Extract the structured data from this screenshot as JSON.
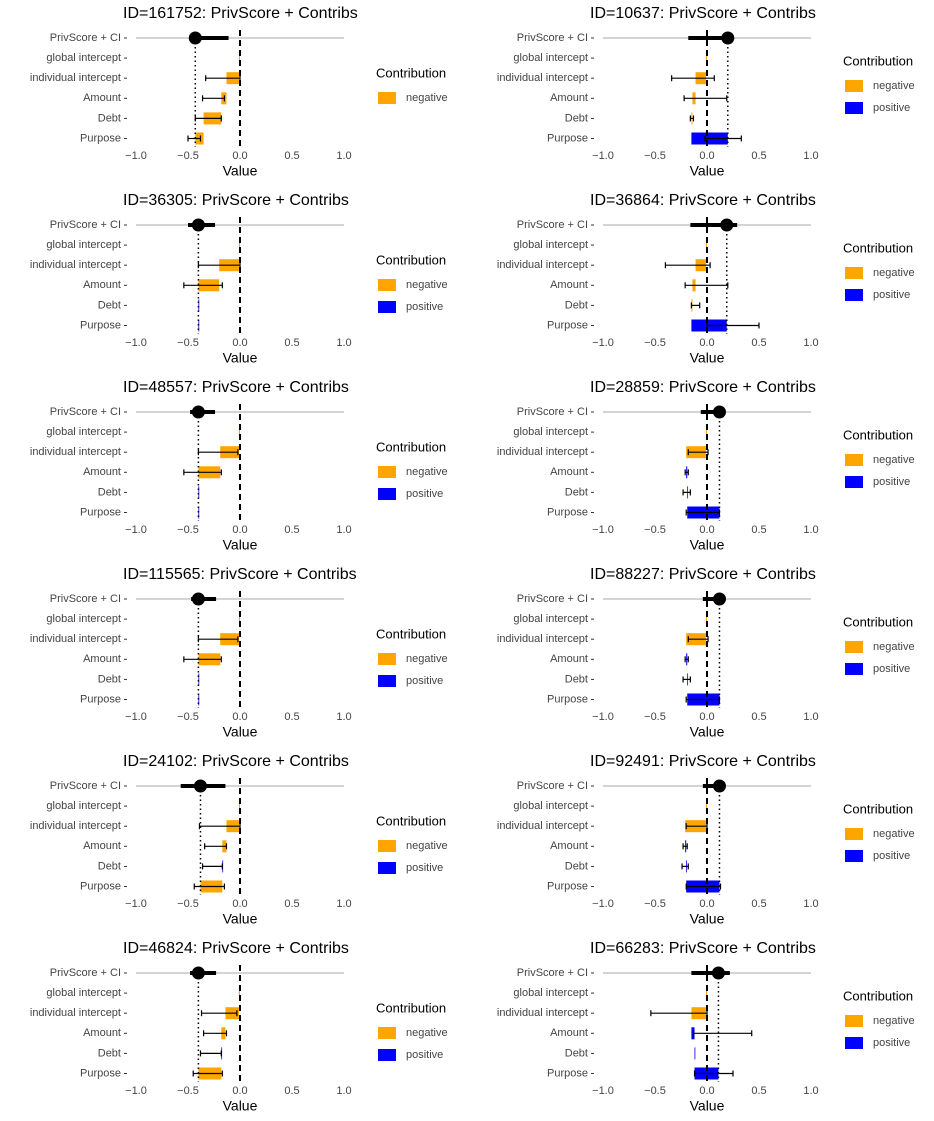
{
  "chart_data": [
    {
      "type": "waterfall",
      "title": "ID=161752: PrivScore + Contribs",
      "score_category": "PrivScore + CI",
      "categories": [
        "global intercept",
        "individual intercept",
        "Amount",
        "Debt",
        "Purpose"
      ],
      "score": -0.43,
      "ci": [
        -0.44,
        -0.11
      ],
      "values": [
        -0.01,
        -0.12,
        -0.05,
        -0.17,
        -0.08
      ],
      "err_low": [
        null,
        -0.33,
        -0.36,
        -0.43,
        -0.5
      ],
      "err_high": [
        null,
        0.0,
        -0.15,
        -0.18,
        -0.38
      ],
      "xlabel": "Value",
      "xlim": [
        -1,
        1
      ],
      "xticks": [
        {
          "value": -1,
          "label": "−1.0"
        },
        {
          "value": -0.5,
          "label": "−0.5"
        },
        {
          "value": 0,
          "label": "0.0"
        },
        {
          "value": 0.5,
          "label": "0.5"
        },
        {
          "value": 1,
          "label": "1.0"
        }
      ],
      "legend_title": "Contribution",
      "legend": [
        {
          "name": "negative",
          "color": "#FFA500"
        }
      ]
    },
    {
      "type": "waterfall",
      "title": "ID=10637: PrivScore + Contribs",
      "score_category": "PrivScore + CI",
      "categories": [
        "global intercept",
        "individual intercept",
        "Amount",
        "Debt",
        "Purpose"
      ],
      "score": 0.2,
      "ci": [
        -0.18,
        0.2
      ],
      "values": [
        -0.01,
        -0.1,
        -0.03,
        -0.01,
        0.35
      ],
      "err_low": [
        null,
        -0.34,
        -0.22,
        -0.16,
        -0.02
      ],
      "err_high": [
        null,
        0.07,
        0.19,
        -0.13,
        0.33
      ],
      "xlabel": "Value",
      "xlim": [
        -1,
        1
      ],
      "xticks": [
        {
          "value": -1,
          "label": "−1.0"
        },
        {
          "value": -0.5,
          "label": "−0.5"
        },
        {
          "value": 0,
          "label": "0.0"
        },
        {
          "value": 0.5,
          "label": "0.5"
        },
        {
          "value": 1,
          "label": "1.0"
        }
      ],
      "legend_title": "Contribution",
      "legend": [
        {
          "name": "negative",
          "color": "#FFA500"
        },
        {
          "name": "positive",
          "color": "#0000FF"
        }
      ]
    },
    {
      "type": "waterfall",
      "title": "ID=36305: PrivScore + Contribs",
      "score_category": "PrivScore + CI",
      "categories": [
        "global intercept",
        "individual intercept",
        "Amount",
        "Debt",
        "Purpose"
      ],
      "score": -0.4,
      "ci": [
        -0.5,
        -0.24
      ],
      "values": [
        -0.01,
        -0.19,
        -0.2,
        0,
        0
      ],
      "err_low": [
        null,
        -0.4,
        -0.54,
        null,
        null
      ],
      "err_high": [
        null,
        0.0,
        -0.17,
        null,
        null
      ],
      "xlabel": "Value",
      "xlim": [
        -1,
        1
      ],
      "xticks": [
        {
          "value": -1,
          "label": "−1.0"
        },
        {
          "value": -0.5,
          "label": "−0.5"
        },
        {
          "value": 0,
          "label": "0.0"
        },
        {
          "value": 0.5,
          "label": "0.5"
        },
        {
          "value": 1,
          "label": "1.0"
        }
      ],
      "legend_title": "Contribution",
      "legend": [
        {
          "name": "negative",
          "color": "#FFA500"
        },
        {
          "name": "positive",
          "color": "#0000FF"
        }
      ]
    },
    {
      "type": "waterfall",
      "title": "ID=36864: PrivScore + Contribs",
      "score_category": "PrivScore + CI",
      "categories": [
        "global intercept",
        "individual intercept",
        "Amount",
        "Debt",
        "Purpose"
      ],
      "score": 0.19,
      "ci": [
        -0.16,
        0.29
      ],
      "values": [
        -0.01,
        -0.1,
        -0.03,
        -0.01,
        0.34
      ],
      "err_low": [
        null,
        -0.4,
        -0.21,
        -0.15,
        0.0
      ],
      "err_high": [
        null,
        0.03,
        0.2,
        -0.07,
        0.5
      ],
      "xlabel": "Value",
      "xlim": [
        -1,
        1
      ],
      "xticks": [
        {
          "value": -1,
          "label": "−1.0"
        },
        {
          "value": -0.5,
          "label": "−0.5"
        },
        {
          "value": 0,
          "label": "0.0"
        },
        {
          "value": 0.5,
          "label": "0.5"
        },
        {
          "value": 1,
          "label": "1.0"
        }
      ],
      "legend_title": "Contribution",
      "legend": [
        {
          "name": "negative",
          "color": "#FFA500"
        },
        {
          "name": "positive",
          "color": "#0000FF"
        }
      ]
    },
    {
      "type": "waterfall",
      "title": "ID=48557: PrivScore + Contribs",
      "score_category": "PrivScore + CI",
      "categories": [
        "global intercept",
        "individual intercept",
        "Amount",
        "Debt",
        "Purpose"
      ],
      "score": -0.4,
      "ci": [
        -0.48,
        -0.24
      ],
      "values": [
        -0.01,
        -0.18,
        -0.21,
        0,
        0
      ],
      "err_low": [
        null,
        -0.4,
        -0.54,
        null,
        null
      ],
      "err_high": [
        null,
        -0.02,
        -0.18,
        null,
        null
      ],
      "xlabel": "Value",
      "xlim": [
        -1,
        1
      ],
      "xticks": [
        {
          "value": -1,
          "label": "−1.0"
        },
        {
          "value": -0.5,
          "label": "−0.5"
        },
        {
          "value": 0,
          "label": "0.0"
        },
        {
          "value": 0.5,
          "label": "0.5"
        },
        {
          "value": 1,
          "label": "1.0"
        }
      ],
      "legend_title": "Contribution",
      "legend": [
        {
          "name": "negative",
          "color": "#FFA500"
        },
        {
          "name": "positive",
          "color": "#0000FF"
        }
      ]
    },
    {
      "type": "waterfall",
      "title": "ID=28859: PrivScore + Contribs",
      "score_category": "PrivScore + CI",
      "categories": [
        "global intercept",
        "individual intercept",
        "Amount",
        "Debt",
        "Purpose"
      ],
      "score": 0.12,
      "ci": [
        -0.06,
        0.12
      ],
      "values": [
        -0.01,
        -0.19,
        0.01,
        0,
        0.31
      ],
      "err_low": [
        null,
        -0.18,
        -0.21,
        -0.23,
        -0.2
      ],
      "err_high": [
        null,
        0.01,
        -0.18,
        -0.16,
        0.12
      ],
      "xlabel": "Value",
      "xlim": [
        -1,
        1
      ],
      "xticks": [
        {
          "value": -1,
          "label": "−1.0"
        },
        {
          "value": -0.5,
          "label": "−0.5"
        },
        {
          "value": 0,
          "label": "0.0"
        },
        {
          "value": 0.5,
          "label": "0.5"
        },
        {
          "value": 1,
          "label": "1.0"
        }
      ],
      "legend_title": "Contribution",
      "legend": [
        {
          "name": "negative",
          "color": "#FFA500"
        },
        {
          "name": "positive",
          "color": "#0000FF"
        }
      ]
    },
    {
      "type": "waterfall",
      "title": "ID=115565: PrivScore + Contribs",
      "score_category": "PrivScore + CI",
      "categories": [
        "global intercept",
        "individual intercept",
        "Amount",
        "Debt",
        "Purpose"
      ],
      "score": -0.4,
      "ci": [
        -0.47,
        -0.23
      ],
      "values": [
        -0.01,
        -0.18,
        -0.21,
        0,
        0
      ],
      "err_low": [
        null,
        -0.4,
        -0.54,
        null,
        null
      ],
      "err_high": [
        null,
        -0.02,
        -0.18,
        null,
        null
      ],
      "xlabel": "Value",
      "xlim": [
        -1,
        1
      ],
      "xticks": [
        {
          "value": -1,
          "label": "−1.0"
        },
        {
          "value": -0.5,
          "label": "−0.5"
        },
        {
          "value": 0,
          "label": "0.0"
        },
        {
          "value": 0.5,
          "label": "0.5"
        },
        {
          "value": 1,
          "label": "1.0"
        }
      ],
      "legend_title": "Contribution",
      "legend": [
        {
          "name": "negative",
          "color": "#FFA500"
        },
        {
          "name": "positive",
          "color": "#0000FF"
        }
      ]
    },
    {
      "type": "waterfall",
      "title": "ID=88227: PrivScore + Contribs",
      "score_category": "PrivScore + CI",
      "categories": [
        "global intercept",
        "individual intercept",
        "Amount",
        "Debt",
        "Purpose"
      ],
      "score": 0.12,
      "ci": [
        -0.04,
        0.12
      ],
      "values": [
        -0.01,
        -0.19,
        0.01,
        0,
        0.31
      ],
      "err_low": [
        null,
        -0.18,
        -0.21,
        -0.23,
        -0.2
      ],
      "err_high": [
        null,
        0.01,
        -0.18,
        -0.16,
        0.12
      ],
      "xlabel": "Value",
      "xlim": [
        -1,
        1
      ],
      "xticks": [
        {
          "value": -1,
          "label": "−1.0"
        },
        {
          "value": -0.5,
          "label": "−0.5"
        },
        {
          "value": 0,
          "label": "0.0"
        },
        {
          "value": 0.5,
          "label": "0.5"
        },
        {
          "value": 1,
          "label": "1.0"
        }
      ],
      "legend_title": "Contribution",
      "legend": [
        {
          "name": "negative",
          "color": "#FFA500"
        },
        {
          "name": "positive",
          "color": "#0000FF"
        }
      ]
    },
    {
      "type": "waterfall",
      "title": "ID=24102: PrivScore + Contribs",
      "score_category": "PrivScore + CI",
      "categories": [
        "global intercept",
        "individual intercept",
        "Amount",
        "Debt",
        "Purpose"
      ],
      "score": -0.38,
      "ci": [
        -0.57,
        -0.14
      ],
      "values": [
        -0.01,
        -0.12,
        -0.04,
        0,
        -0.21
      ],
      "err_low": [
        null,
        -0.39,
        -0.34,
        -0.36,
        -0.44
      ],
      "err_high": [
        null,
        0.0,
        -0.13,
        -0.17,
        -0.15
      ],
      "xlabel": "Value",
      "xlim": [
        -1,
        1
      ],
      "xticks": [
        {
          "value": -1,
          "label": "−1.0"
        },
        {
          "value": -0.5,
          "label": "−0.5"
        },
        {
          "value": 0,
          "label": "0.0"
        },
        {
          "value": 0.5,
          "label": "0.5"
        },
        {
          "value": 1,
          "label": "1.0"
        }
      ],
      "legend_title": "Contribution",
      "legend": [
        {
          "name": "negative",
          "color": "#FFA500"
        },
        {
          "name": "positive",
          "color": "#0000FF"
        }
      ]
    },
    {
      "type": "waterfall",
      "title": "ID=92491: PrivScore + Contribs",
      "score_category": "PrivScore + CI",
      "categories": [
        "global intercept",
        "individual intercept",
        "Amount",
        "Debt",
        "Purpose"
      ],
      "score": 0.12,
      "ci": [
        -0.04,
        0.12
      ],
      "values": [
        -0.01,
        -0.2,
        0.01,
        0,
        0.32
      ],
      "err_low": [
        null,
        -0.2,
        -0.23,
        -0.24,
        -0.2
      ],
      "err_high": [
        null,
        0.0,
        -0.19,
        -0.18,
        0.13
      ],
      "xlabel": "Value",
      "xlim": [
        -1,
        1
      ],
      "xticks": [
        {
          "value": -1,
          "label": "−1.0"
        },
        {
          "value": -0.5,
          "label": "−0.5"
        },
        {
          "value": 0,
          "label": "0.0"
        },
        {
          "value": 0.5,
          "label": "0.5"
        },
        {
          "value": 1,
          "label": "1.0"
        }
      ],
      "legend_title": "Contribution",
      "legend": [
        {
          "name": "negative",
          "color": "#FFA500"
        },
        {
          "name": "positive",
          "color": "#0000FF"
        }
      ]
    },
    {
      "type": "waterfall",
      "title": "ID=46824: PrivScore + Contribs",
      "score_category": "PrivScore + CI",
      "categories": [
        "global intercept",
        "individual intercept",
        "Amount",
        "Debt",
        "Purpose"
      ],
      "score": -0.4,
      "ci": [
        -0.48,
        -0.23
      ],
      "values": [
        -0.01,
        -0.13,
        -0.04,
        0,
        -0.22
      ],
      "err_low": [
        null,
        -0.37,
        -0.35,
        -0.38,
        -0.45
      ],
      "err_high": [
        null,
        -0.03,
        -0.13,
        -0.18,
        -0.17
      ],
      "xlabel": "Value",
      "xlim": [
        -1,
        1
      ],
      "xticks": [
        {
          "value": -1,
          "label": "−1.0"
        },
        {
          "value": -0.5,
          "label": "−0.5"
        },
        {
          "value": 0,
          "label": "0.0"
        },
        {
          "value": 0.5,
          "label": "0.5"
        },
        {
          "value": 1,
          "label": "1.0"
        }
      ],
      "legend_title": "Contribution",
      "legend": [
        {
          "name": "negative",
          "color": "#FFA500"
        },
        {
          "name": "positive",
          "color": "#0000FF"
        }
      ]
    },
    {
      "type": "waterfall",
      "title": "ID=66283: PrivScore + Contribs",
      "score_category": "PrivScore + CI",
      "categories": [
        "global intercept",
        "individual intercept",
        "Amount",
        "Debt",
        "Purpose"
      ],
      "score": 0.11,
      "ci": [
        -0.15,
        0.22
      ],
      "values": [
        -0.01,
        -0.14,
        0.03,
        0,
        0.23
      ],
      "err_low": [
        null,
        -0.54,
        -0.13,
        null,
        -0.12
      ],
      "err_high": [
        null,
        0.0,
        0.43,
        null,
        0.25
      ],
      "xlabel": "Value",
      "xlim": [
        -1,
        1
      ],
      "xticks": [
        {
          "value": -1,
          "label": "−1.0"
        },
        {
          "value": -0.5,
          "label": "−0.5"
        },
        {
          "value": 0,
          "label": "0.0"
        },
        {
          "value": 0.5,
          "label": "0.5"
        },
        {
          "value": 1,
          "label": "1.0"
        }
      ],
      "legend_title": "Contribution",
      "legend": [
        {
          "name": "negative",
          "color": "#FFA500"
        },
        {
          "name": "positive",
          "color": "#0000FF"
        }
      ]
    }
  ]
}
